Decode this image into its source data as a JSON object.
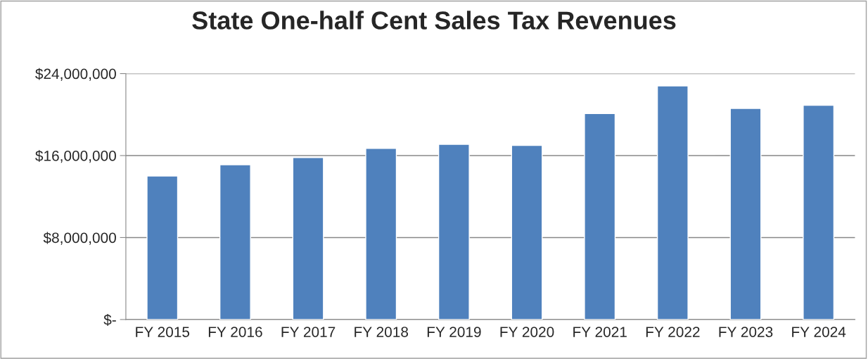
{
  "chart_data": {
    "type": "bar",
    "title": "State One-half Cent Sales Tax Revenues",
    "categories": [
      "FY 2015",
      "FY 2016",
      "FY 2017",
      "FY 2018",
      "FY 2019",
      "FY 2020",
      "FY 2021",
      "FY 2022",
      "FY 2023",
      "FY 2024"
    ],
    "values": [
      14000000,
      15100000,
      15800000,
      16700000,
      17100000,
      17000000,
      20100000,
      22800000,
      20600000,
      20900000
    ],
    "color": "#4f81bd",
    "ylim": [
      0,
      24000000
    ],
    "yticks": [
      {
        "value": 0,
        "label": "$-"
      },
      {
        "value": 8000000,
        "label": "$8,000,000"
      },
      {
        "value": 16000000,
        "label": "$16,000,000"
      },
      {
        "value": 24000000,
        "label": "$24,000,000"
      }
    ],
    "grid": "y"
  }
}
